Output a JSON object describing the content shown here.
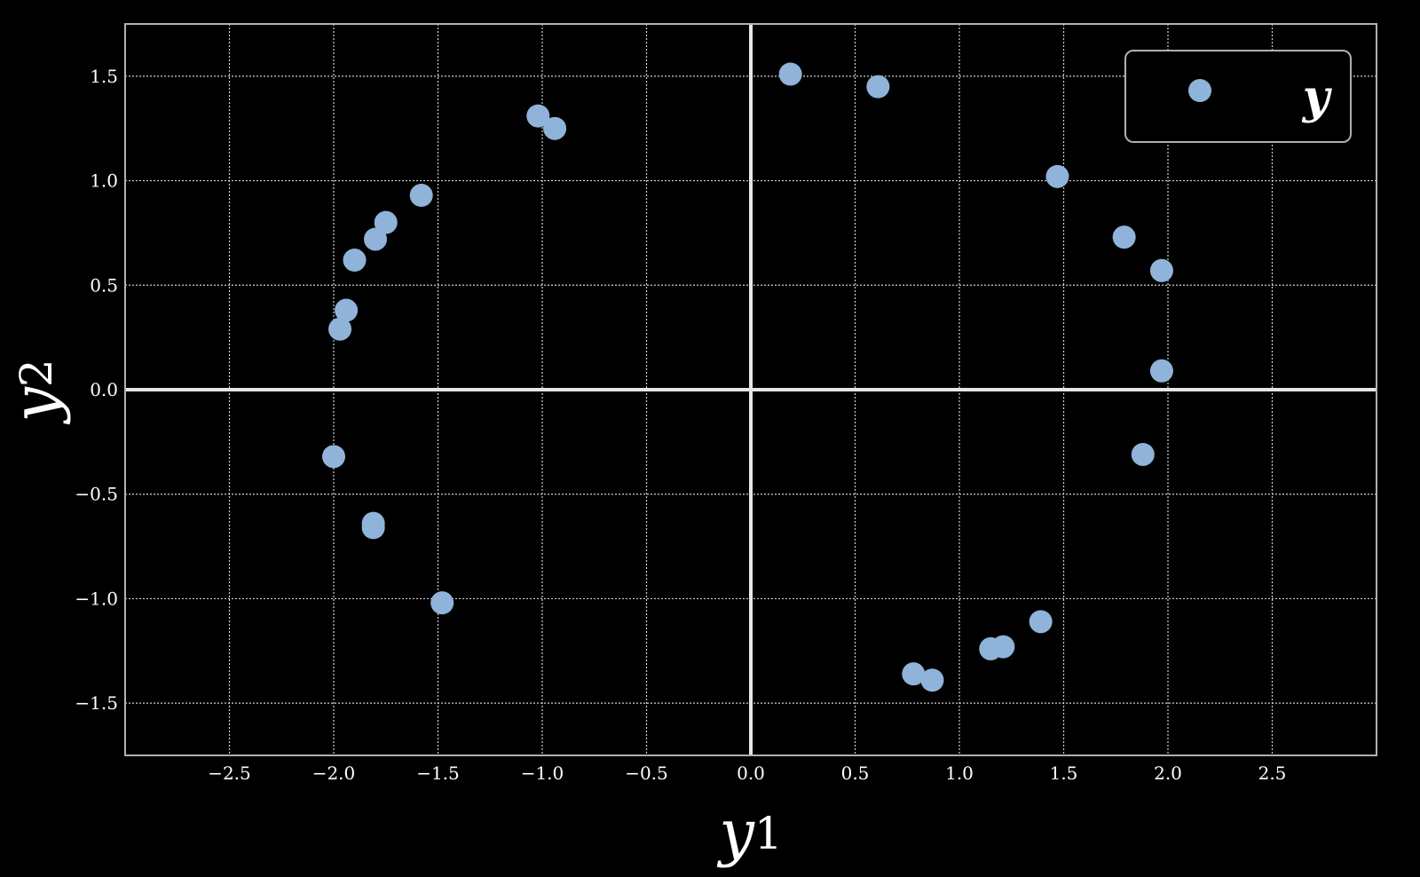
{
  "chart_data": {
    "type": "scatter",
    "title": "",
    "xlabel": "y",
    "xlabel_sub": "1",
    "ylabel": "y",
    "ylabel_sub": "2",
    "xlim": [
      -3.0,
      3.0
    ],
    "ylim": [
      -1.75,
      1.75
    ],
    "xticks": [
      -2.5,
      -2.0,
      -1.5,
      -1.0,
      -0.5,
      0.0,
      0.5,
      1.0,
      1.5,
      2.0,
      2.5
    ],
    "xtick_labels": [
      "−2.5",
      "−2.0",
      "−1.5",
      "−1.0",
      "−0.5",
      "0.0",
      "0.5",
      "1.0",
      "1.5",
      "2.0",
      "2.5"
    ],
    "yticks": [
      -1.5,
      -1.0,
      -0.5,
      0.0,
      0.5,
      1.0,
      1.5
    ],
    "ytick_labels": [
      "−1.5",
      "−1.0",
      "−0.5",
      "0.0",
      "0.5",
      "1.0",
      "1.5"
    ],
    "grid": true,
    "legend_position": "top-right",
    "colors": {
      "background": "#000000",
      "point": "#8fb3d9",
      "grid": "#cfcfcf",
      "axis_zero": "#e6e6e6",
      "frame": "#b0b0b0",
      "text": "#ffffff"
    },
    "series": [
      {
        "name": "y",
        "x": [
          0.19,
          0.61,
          1.47,
          1.79,
          1.97,
          1.97,
          1.88,
          1.39,
          1.21,
          1.15,
          0.87,
          0.78,
          -1.02,
          -0.94,
          -1.58,
          -1.75,
          -1.8,
          -1.9,
          -1.94,
          -1.97,
          -2.0,
          -1.81,
          -1.81,
          -1.48
        ],
        "y": [
          1.51,
          1.45,
          1.02,
          0.73,
          0.57,
          0.09,
          -0.31,
          -1.11,
          -1.23,
          -1.24,
          -1.39,
          -1.36,
          1.31,
          1.25,
          0.93,
          0.8,
          0.72,
          0.62,
          0.38,
          0.29,
          -0.32,
          -0.64,
          -0.66,
          -1.02
        ]
      }
    ]
  }
}
